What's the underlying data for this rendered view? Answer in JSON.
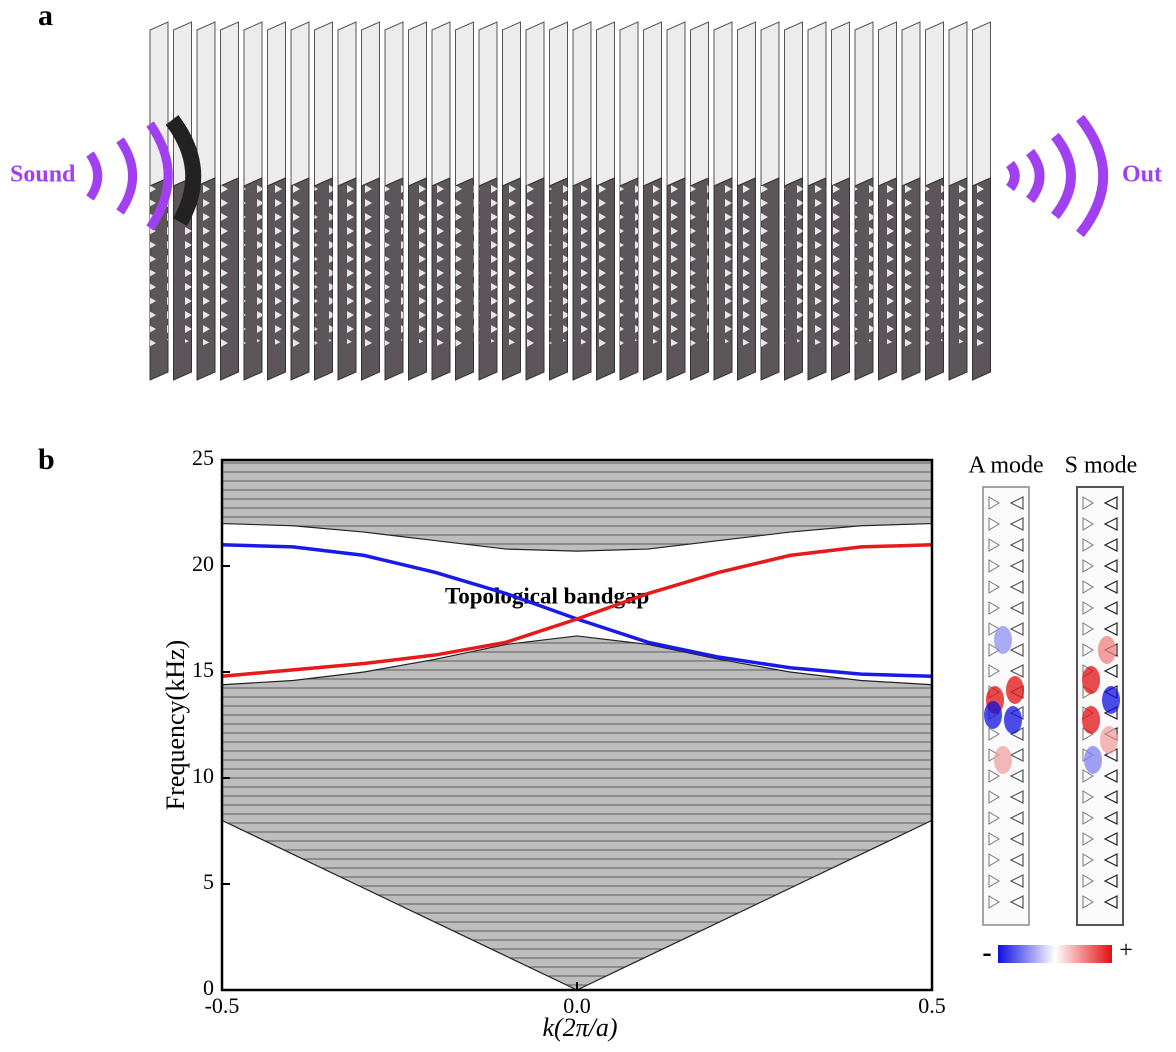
{
  "panel_a": {
    "label": "a",
    "input": "Sound",
    "output": "Out"
  },
  "chart_data": {
    "type": "line",
    "panel_label": "b",
    "xlabel": "k(2π/a)",
    "ylabel": "Frequency(kHz)",
    "annotation": "Topological bandgap",
    "x": [
      -0.5,
      -0.4,
      -0.3,
      -0.2,
      -0.1,
      0,
      0.1,
      0.2,
      0.3,
      0.4,
      0.5
    ],
    "series": [
      {
        "color": "#1a1ae6",
        "values": [
          21.0,
          20.9,
          20.5,
          19.7,
          18.7,
          17.5,
          16.4,
          15.7,
          15.2,
          14.9,
          14.8
        ]
      },
      {
        "color": "#e61a1a",
        "values": [
          14.8,
          15.1,
          15.4,
          15.8,
          16.4,
          17.5,
          18.7,
          19.7,
          20.5,
          20.9,
          21.0
        ]
      }
    ],
    "bands": [
      {
        "color": "#bdbdbd",
        "lower": [
          8.0,
          6.4,
          4.8,
          3.2,
          1.6,
          0,
          1.6,
          3.2,
          4.8,
          6.4,
          8.0
        ],
        "upper": [
          14.4,
          14.6,
          15.0,
          15.6,
          16.3,
          16.7,
          16.3,
          15.6,
          15.0,
          14.6,
          14.4
        ]
      },
      {
        "color": "#bdbdbd",
        "lower": [
          22.0,
          21.9,
          21.6,
          21.2,
          20.8,
          20.7,
          20.8,
          21.2,
          21.6,
          21.9,
          22.0
        ],
        "upper": [
          25,
          25,
          25,
          25,
          25,
          25,
          25,
          25,
          25,
          25,
          25
        ]
      }
    ],
    "xlim": [
      -0.5,
      0.5
    ],
    "xticks": [
      {
        "value": -0.5,
        "label": "-0.5"
      },
      {
        "value": 0,
        "label": "0.0"
      },
      {
        "value": 0.5,
        "label": "0.5"
      }
    ],
    "ylim": [
      0,
      25
    ],
    "yticks": [
      0,
      5,
      10,
      15,
      20,
      25
    ]
  },
  "mode_panel": {
    "a_label": "A mode",
    "s_label": "S mode",
    "colorbar_min": "-",
    "colorbar_max": "+"
  }
}
